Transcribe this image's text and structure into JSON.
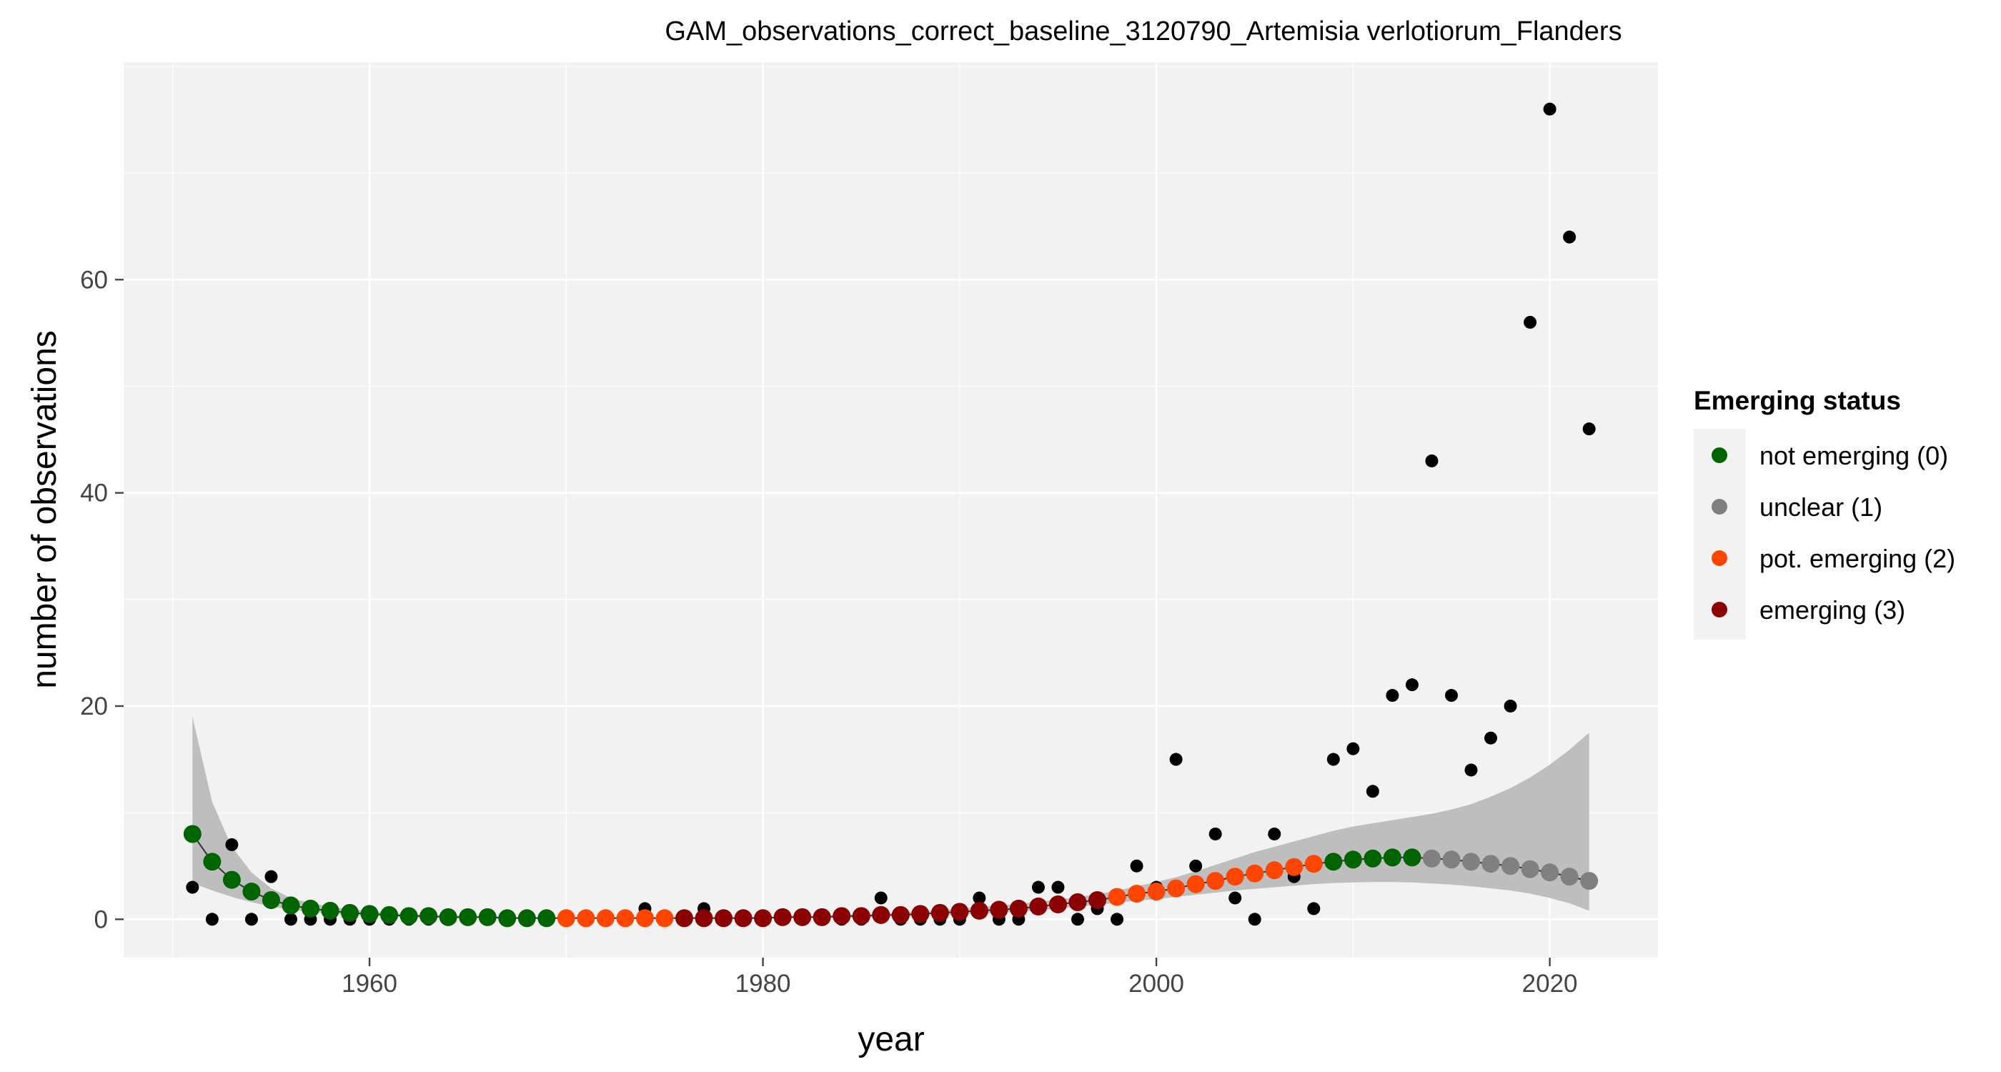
{
  "chart_data": {
    "type": "scatter",
    "title": "GAM_observations_correct_baseline_3120790_Artemisia verlotiorum_Flanders",
    "xlabel": "year",
    "ylabel": "number of observations",
    "xlim": [
      1947.5,
      2025.5
    ],
    "ylim": [
      -3.6,
      80.4
    ],
    "x_ticks": [
      1960,
      1980,
      2000,
      2020
    ],
    "x_tick_labels": [
      "1960",
      "1980",
      "2000",
      "2020"
    ],
    "y_ticks": [
      0,
      20,
      40,
      60
    ],
    "y_tick_labels": [
      "0",
      "20",
      "40",
      "60"
    ],
    "grid": true,
    "legend_position": "right",
    "legend": {
      "title": "Emerging status",
      "entries": [
        {
          "label": "not emerging (0)",
          "color": "#006400"
        },
        {
          "label": "unclear (1)",
          "color": "#808080"
        },
        {
          "label": "pot. emerging (2)",
          "color": "#FF4500"
        },
        {
          "label": "emerging (3)",
          "color": "#8B0000"
        }
      ]
    },
    "colors": {
      "panel_background": "#F2F2F2",
      "ribbon": "#BEBEBE",
      "observed": "#000000",
      "trend_line": "#333333"
    },
    "observed": {
      "name": "observations",
      "x": [
        1951,
        1952,
        1953,
        1954,
        1955,
        1956,
        1957,
        1958,
        1959,
        1960,
        1961,
        1962,
        1963,
        1964,
        1965,
        1966,
        1967,
        1968,
        1969,
        1970,
        1971,
        1972,
        1973,
        1974,
        1975,
        1976,
        1977,
        1978,
        1979,
        1980,
        1981,
        1982,
        1983,
        1984,
        1985,
        1986,
        1987,
        1988,
        1989,
        1990,
        1991,
        1992,
        1993,
        1994,
        1995,
        1996,
        1997,
        1998,
        1999,
        2000,
        2001,
        2002,
        2003,
        2004,
        2005,
        2006,
        2007,
        2008,
        2009,
        2010,
        2011,
        2012,
        2013,
        2014,
        2015,
        2016,
        2017,
        2018,
        2019,
        2020,
        2021,
        2022
      ],
      "y": [
        3,
        0,
        7,
        0,
        4,
        0,
        0,
        0,
        0,
        0,
        0,
        0,
        0,
        0,
        0,
        0,
        0,
        0,
        0,
        0,
        0,
        0,
        0,
        1,
        0,
        0,
        1,
        0,
        0,
        0,
        0,
        0,
        0,
        0,
        0,
        2,
        0,
        0,
        0,
        0,
        2,
        0,
        0,
        3,
        3,
        0,
        1,
        0,
        5,
        3,
        15,
        5,
        8,
        2,
        0,
        8,
        4,
        1,
        15,
        16,
        12,
        21,
        22,
        43,
        21,
        14,
        17,
        20,
        56,
        76,
        64,
        46
      ]
    },
    "fitted": {
      "name": "GAM fit",
      "x": [
        1951,
        1952,
        1953,
        1954,
        1955,
        1956,
        1957,
        1958,
        1959,
        1960,
        1961,
        1962,
        1963,
        1964,
        1965,
        1966,
        1967,
        1968,
        1969,
        1970,
        1971,
        1972,
        1973,
        1974,
        1975,
        1976,
        1977,
        1978,
        1979,
        1980,
        1981,
        1982,
        1983,
        1984,
        1985,
        1986,
        1987,
        1988,
        1989,
        1990,
        1991,
        1992,
        1993,
        1994,
        1995,
        1996,
        1997,
        1998,
        1999,
        2000,
        2001,
        2002,
        2003,
        2004,
        2005,
        2006,
        2007,
        2008,
        2009,
        2010,
        2011,
        2012,
        2013,
        2014,
        2015,
        2016,
        2017,
        2018,
        2019,
        2020,
        2021,
        2022
      ],
      "y": [
        8.0,
        5.4,
        3.7,
        2.6,
        1.8,
        1.3,
        1.0,
        0.8,
        0.6,
        0.5,
        0.4,
        0.3,
        0.3,
        0.2,
        0.2,
        0.2,
        0.1,
        0.1,
        0.1,
        0.1,
        0.1,
        0.1,
        0.1,
        0.1,
        0.1,
        0.1,
        0.1,
        0.1,
        0.1,
        0.1,
        0.2,
        0.2,
        0.2,
        0.3,
        0.3,
        0.4,
        0.4,
        0.5,
        0.6,
        0.7,
        0.8,
        0.9,
        1.0,
        1.2,
        1.4,
        1.6,
        1.8,
        2.1,
        2.4,
        2.6,
        2.9,
        3.3,
        3.6,
        4.0,
        4.3,
        4.6,
        4.9,
        5.2,
        5.4,
        5.6,
        5.7,
        5.8,
        5.8,
        5.7,
        5.6,
        5.4,
        5.2,
        5.0,
        4.7,
        4.4,
        4.0,
        3.6
      ],
      "lower": [
        3.4,
        2.7,
        2.1,
        1.6,
        1.2,
        0.9,
        0.7,
        0.5,
        0.4,
        0.3,
        0.25,
        0.2,
        0.15,
        0.1,
        0.1,
        0.1,
        0.05,
        0.05,
        0.05,
        0.05,
        0.05,
        0.05,
        0.05,
        0.05,
        0.05,
        0.05,
        0.05,
        0.05,
        0.05,
        0.05,
        0.1,
        0.1,
        0.1,
        0.15,
        0.15,
        0.2,
        0.2,
        0.3,
        0.35,
        0.45,
        0.5,
        0.6,
        0.7,
        0.85,
        1.0,
        1.2,
        1.35,
        1.55,
        1.75,
        1.9,
        2.1,
        2.3,
        2.5,
        2.7,
        2.85,
        3.0,
        3.15,
        3.3,
        3.4,
        3.45,
        3.5,
        3.5,
        3.45,
        3.35,
        3.25,
        3.1,
        2.9,
        2.7,
        2.4,
        2.0,
        1.5,
        0.8
      ],
      "upper": [
        19.0,
        11.0,
        6.8,
        4.4,
        2.9,
        2.0,
        1.5,
        1.2,
        0.9,
        0.8,
        0.6,
        0.5,
        0.4,
        0.35,
        0.3,
        0.3,
        0.25,
        0.2,
        0.2,
        0.2,
        0.2,
        0.2,
        0.2,
        0.2,
        0.2,
        0.2,
        0.2,
        0.2,
        0.2,
        0.2,
        0.3,
        0.3,
        0.3,
        0.4,
        0.45,
        0.55,
        0.65,
        0.75,
        0.85,
        1.0,
        1.15,
        1.3,
        1.45,
        1.65,
        1.85,
        2.1,
        2.35,
        2.7,
        3.1,
        3.5,
        3.95,
        4.5,
        5.1,
        5.7,
        6.3,
        6.8,
        7.3,
        7.8,
        8.3,
        8.7,
        9.0,
        9.3,
        9.6,
        9.9,
        10.3,
        10.8,
        11.5,
        12.3,
        13.3,
        14.5,
        15.9,
        17.5
      ],
      "status": [
        0,
        0,
        0,
        0,
        0,
        0,
        0,
        0,
        0,
        0,
        0,
        0,
        0,
        0,
        0,
        0,
        0,
        0,
        0,
        2,
        2,
        2,
        2,
        2,
        2,
        3,
        3,
        3,
        3,
        3,
        3,
        3,
        3,
        3,
        3,
        3,
        3,
        3,
        3,
        3,
        3,
        3,
        3,
        3,
        3,
        3,
        3,
        2,
        2,
        2,
        2,
        2,
        2,
        2,
        2,
        2,
        2,
        2,
        0,
        0,
        0,
        0,
        0,
        1,
        1,
        1,
        1,
        1,
        1,
        1,
        1,
        1
      ]
    }
  }
}
